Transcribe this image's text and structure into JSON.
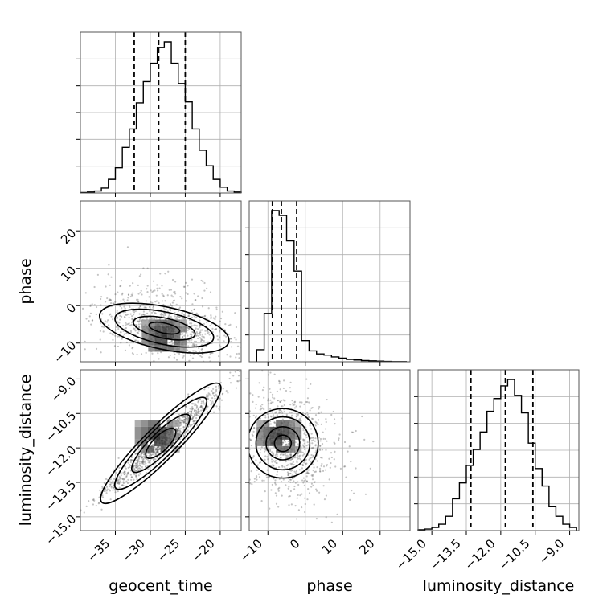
{
  "chart_data": {
    "type": "corner",
    "grid": true,
    "colors": {
      "line": "#000000",
      "grid": "#b0b0b0",
      "points": "#555555"
    },
    "parameters": [
      {
        "name": "geocent_time",
        "label": "geocent_time",
        "range": [
          -40,
          -17
        ],
        "ticks": [
          -35,
          -30,
          -25,
          -20
        ],
        "tick_labels": [
          "−35",
          "−30",
          "−25",
          "−20"
        ],
        "quantiles": [
          -32.3,
          -28.8,
          -25.0
        ],
        "histogram": {
          "edges": [
            -40,
            -39,
            -38,
            -37,
            -36,
            -35,
            -34,
            -33,
            -32,
            -31,
            -30,
            -29,
            -28,
            -27,
            -26,
            -25,
            -24,
            -23,
            -22,
            -21,
            -20,
            -19,
            -18,
            -17
          ],
          "counts": [
            0.5,
            1,
            2,
            5,
            14,
            26,
            47,
            66,
            93,
            115,
            134,
            150,
            156,
            134,
            113,
            94,
            66,
            44,
            28,
            14,
            6,
            2,
            1
          ]
        }
      },
      {
        "name": "phase",
        "label": "phase",
        "range": [
          -15,
          28
        ],
        "ticks": [
          -10,
          0,
          10,
          20
        ],
        "tick_labels": [
          "−10",
          "0",
          "10",
          "20"
        ],
        "quantiles": [
          -8.8,
          -6.4,
          -2.3
        ],
        "histogram": {
          "edges": [
            -13,
            -11,
            -9,
            -7,
            -5,
            -3,
            -1,
            1,
            3,
            5,
            7,
            9,
            11,
            13,
            15,
            17,
            19,
            21,
            23,
            25,
            27
          ],
          "counts": [
            20,
            80,
            250,
            242,
            200,
            150,
            35,
            18,
            13,
            11,
            8,
            6,
            4,
            3,
            2,
            1.5,
            1,
            0.5,
            0.3,
            0.2
          ]
        }
      },
      {
        "name": "luminosity_distance",
        "label": "luminosity_distance",
        "range": [
          -15.6,
          -8.6
        ],
        "ticks": [
          -15.0,
          -13.5,
          -12.0,
          -10.5,
          -9.0
        ],
        "tick_labels": [
          "−15.0",
          "−13.5",
          "−12.0",
          "−10.5",
          "−9.0"
        ],
        "quantiles": [
          -13.3,
          -11.8,
          -10.6
        ],
        "histogram": {
          "edges": [
            -15.6,
            -15.3,
            -15.0,
            -14.7,
            -14.4,
            -14.1,
            -13.8,
            -13.5,
            -13.2,
            -12.9,
            -12.6,
            -12.3,
            -12.0,
            -11.7,
            -11.4,
            -11.1,
            -10.8,
            -10.5,
            -10.2,
            -9.9,
            -9.6,
            -9.3,
            -9.0,
            -8.7
          ],
          "counts": [
            1,
            2,
            4,
            8,
            18,
            40,
            60,
            82,
            102,
            124,
            150,
            166,
            182,
            190,
            170,
            148,
            110,
            78,
            56,
            30,
            18,
            8,
            4
          ]
        }
      }
    ],
    "correlations": {
      "geocent_time__phase": {
        "mean": [
          -28,
          -6
        ],
        "sd": [
          5,
          4.5
        ],
        "rho": -0.45,
        "peak": [
          -28,
          -8
        ]
      },
      "geocent_time__luminosity_distance": {
        "mean": [
          -28.5,
          -11.8
        ],
        "sd": [
          4.5,
          1.2
        ],
        "rho": 0.97,
        "peak": [
          -29,
          -11.5
        ]
      },
      "phase__luminosity_distance": {
        "mean": [
          -6,
          -11.8
        ],
        "sd": [
          5,
          1.2
        ],
        "rho": -0.2,
        "peak": [
          -7,
          -11.5
        ]
      }
    }
  }
}
